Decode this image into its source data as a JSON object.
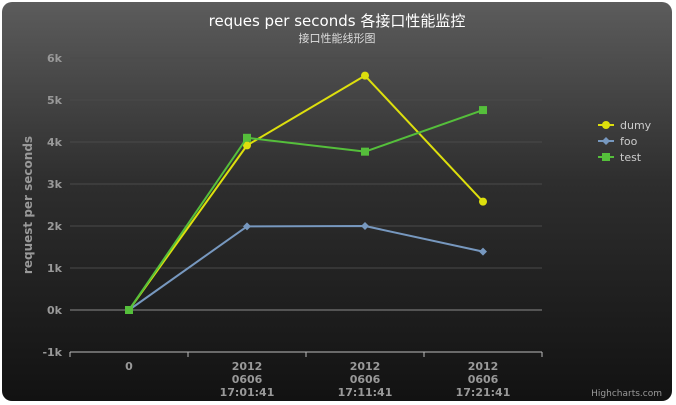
{
  "chart_data": {
    "type": "line",
    "title": "reques per seconds 各接口性能监控",
    "subtitle": "接口性能线形图",
    "xlabel": "",
    "ylabel": "request per seconds",
    "categories": [
      [
        "0"
      ],
      [
        "2012",
        "0606",
        "17:01:41"
      ],
      [
        "2012",
        "0606",
        "17:11:41"
      ],
      [
        "2012",
        "0606",
        "17:21:41"
      ]
    ],
    "ylim": [
      -1000,
      6000
    ],
    "yticks": [
      -1000,
      0,
      1000,
      2000,
      3000,
      4000,
      5000,
      6000
    ],
    "ytick_labels": [
      "-1k",
      "0k",
      "1k",
      "2k",
      "3k",
      "4k",
      "5k",
      "6k"
    ],
    "grid": true,
    "legend_position": "right",
    "series": [
      {
        "name": "dumy",
        "color": "#dddf0d",
        "marker": "circle",
        "values": [
          0,
          3920,
          5580,
          2580
        ]
      },
      {
        "name": "foo",
        "color": "#7798bf",
        "marker": "diamond",
        "values": [
          0,
          1990,
          2000,
          1390
        ]
      },
      {
        "name": "test",
        "color": "#55bf3b",
        "marker": "square",
        "values": [
          0,
          4100,
          3770,
          4760
        ]
      }
    ],
    "credits": "Highcharts.com"
  }
}
